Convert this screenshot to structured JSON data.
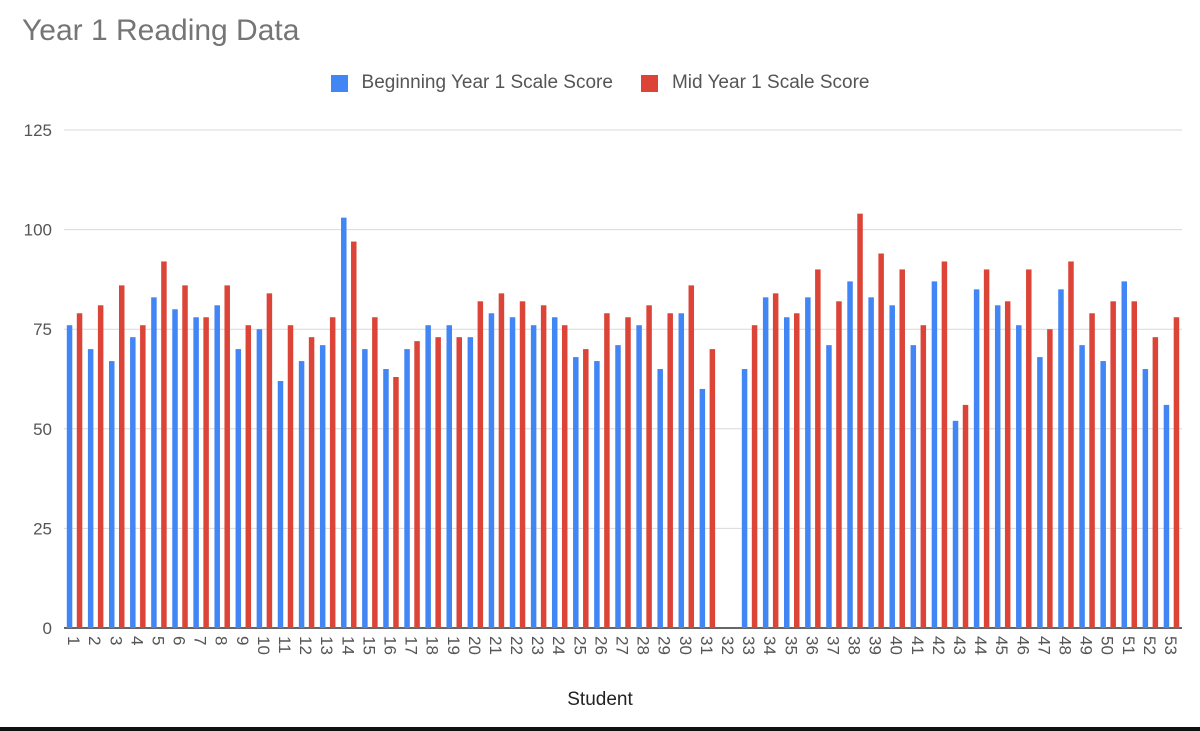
{
  "chart_data": {
    "type": "bar",
    "title": "Year 1 Reading Data",
    "xlabel": "Student",
    "ylabel": "",
    "ylim": [
      0,
      125
    ],
    "yticks": [
      0,
      25,
      50,
      75,
      100,
      125
    ],
    "grid": true,
    "legend_position": "top",
    "categories": [
      "1",
      "2",
      "3",
      "4",
      "5",
      "6",
      "7",
      "8",
      "9",
      "10",
      "11",
      "12",
      "13",
      "14",
      "15",
      "16",
      "17",
      "18",
      "19",
      "20",
      "21",
      "22",
      "23",
      "24",
      "25",
      "26",
      "27",
      "28",
      "29",
      "30",
      "31",
      "32",
      "33",
      "34",
      "35",
      "36",
      "37",
      "38",
      "39",
      "40",
      "41",
      "42",
      "43",
      "44",
      "45",
      "46",
      "47",
      "48",
      "49",
      "50",
      "51",
      "52",
      "53"
    ],
    "series": [
      {
        "name": "Beginning Year 1 Scale Score",
        "color": "#4285f4",
        "values": [
          76,
          70,
          67,
          73,
          83,
          80,
          78,
          81,
          70,
          75,
          62,
          67,
          71,
          103,
          70,
          65,
          70,
          76,
          76,
          73,
          79,
          78,
          76,
          78,
          68,
          67,
          71,
          76,
          65,
          79,
          60,
          0,
          65,
          83,
          78,
          83,
          71,
          87,
          83,
          81,
          71,
          87,
          52,
          85,
          81,
          76,
          68,
          85,
          71,
          67,
          87,
          65,
          56
        ]
      },
      {
        "name": "Mid Year 1 Scale Score",
        "color": "#db4437",
        "values": [
          79,
          81,
          86,
          76,
          92,
          86,
          78,
          86,
          76,
          84,
          76,
          73,
          78,
          97,
          78,
          63,
          72,
          73,
          73,
          82,
          84,
          82,
          81,
          76,
          70,
          79,
          78,
          81,
          79,
          86,
          70,
          0,
          76,
          84,
          79,
          90,
          82,
          104,
          94,
          90,
          76,
          92,
          56,
          90,
          82,
          90,
          75,
          92,
          79,
          82,
          82,
          73,
          78
        ]
      }
    ]
  }
}
